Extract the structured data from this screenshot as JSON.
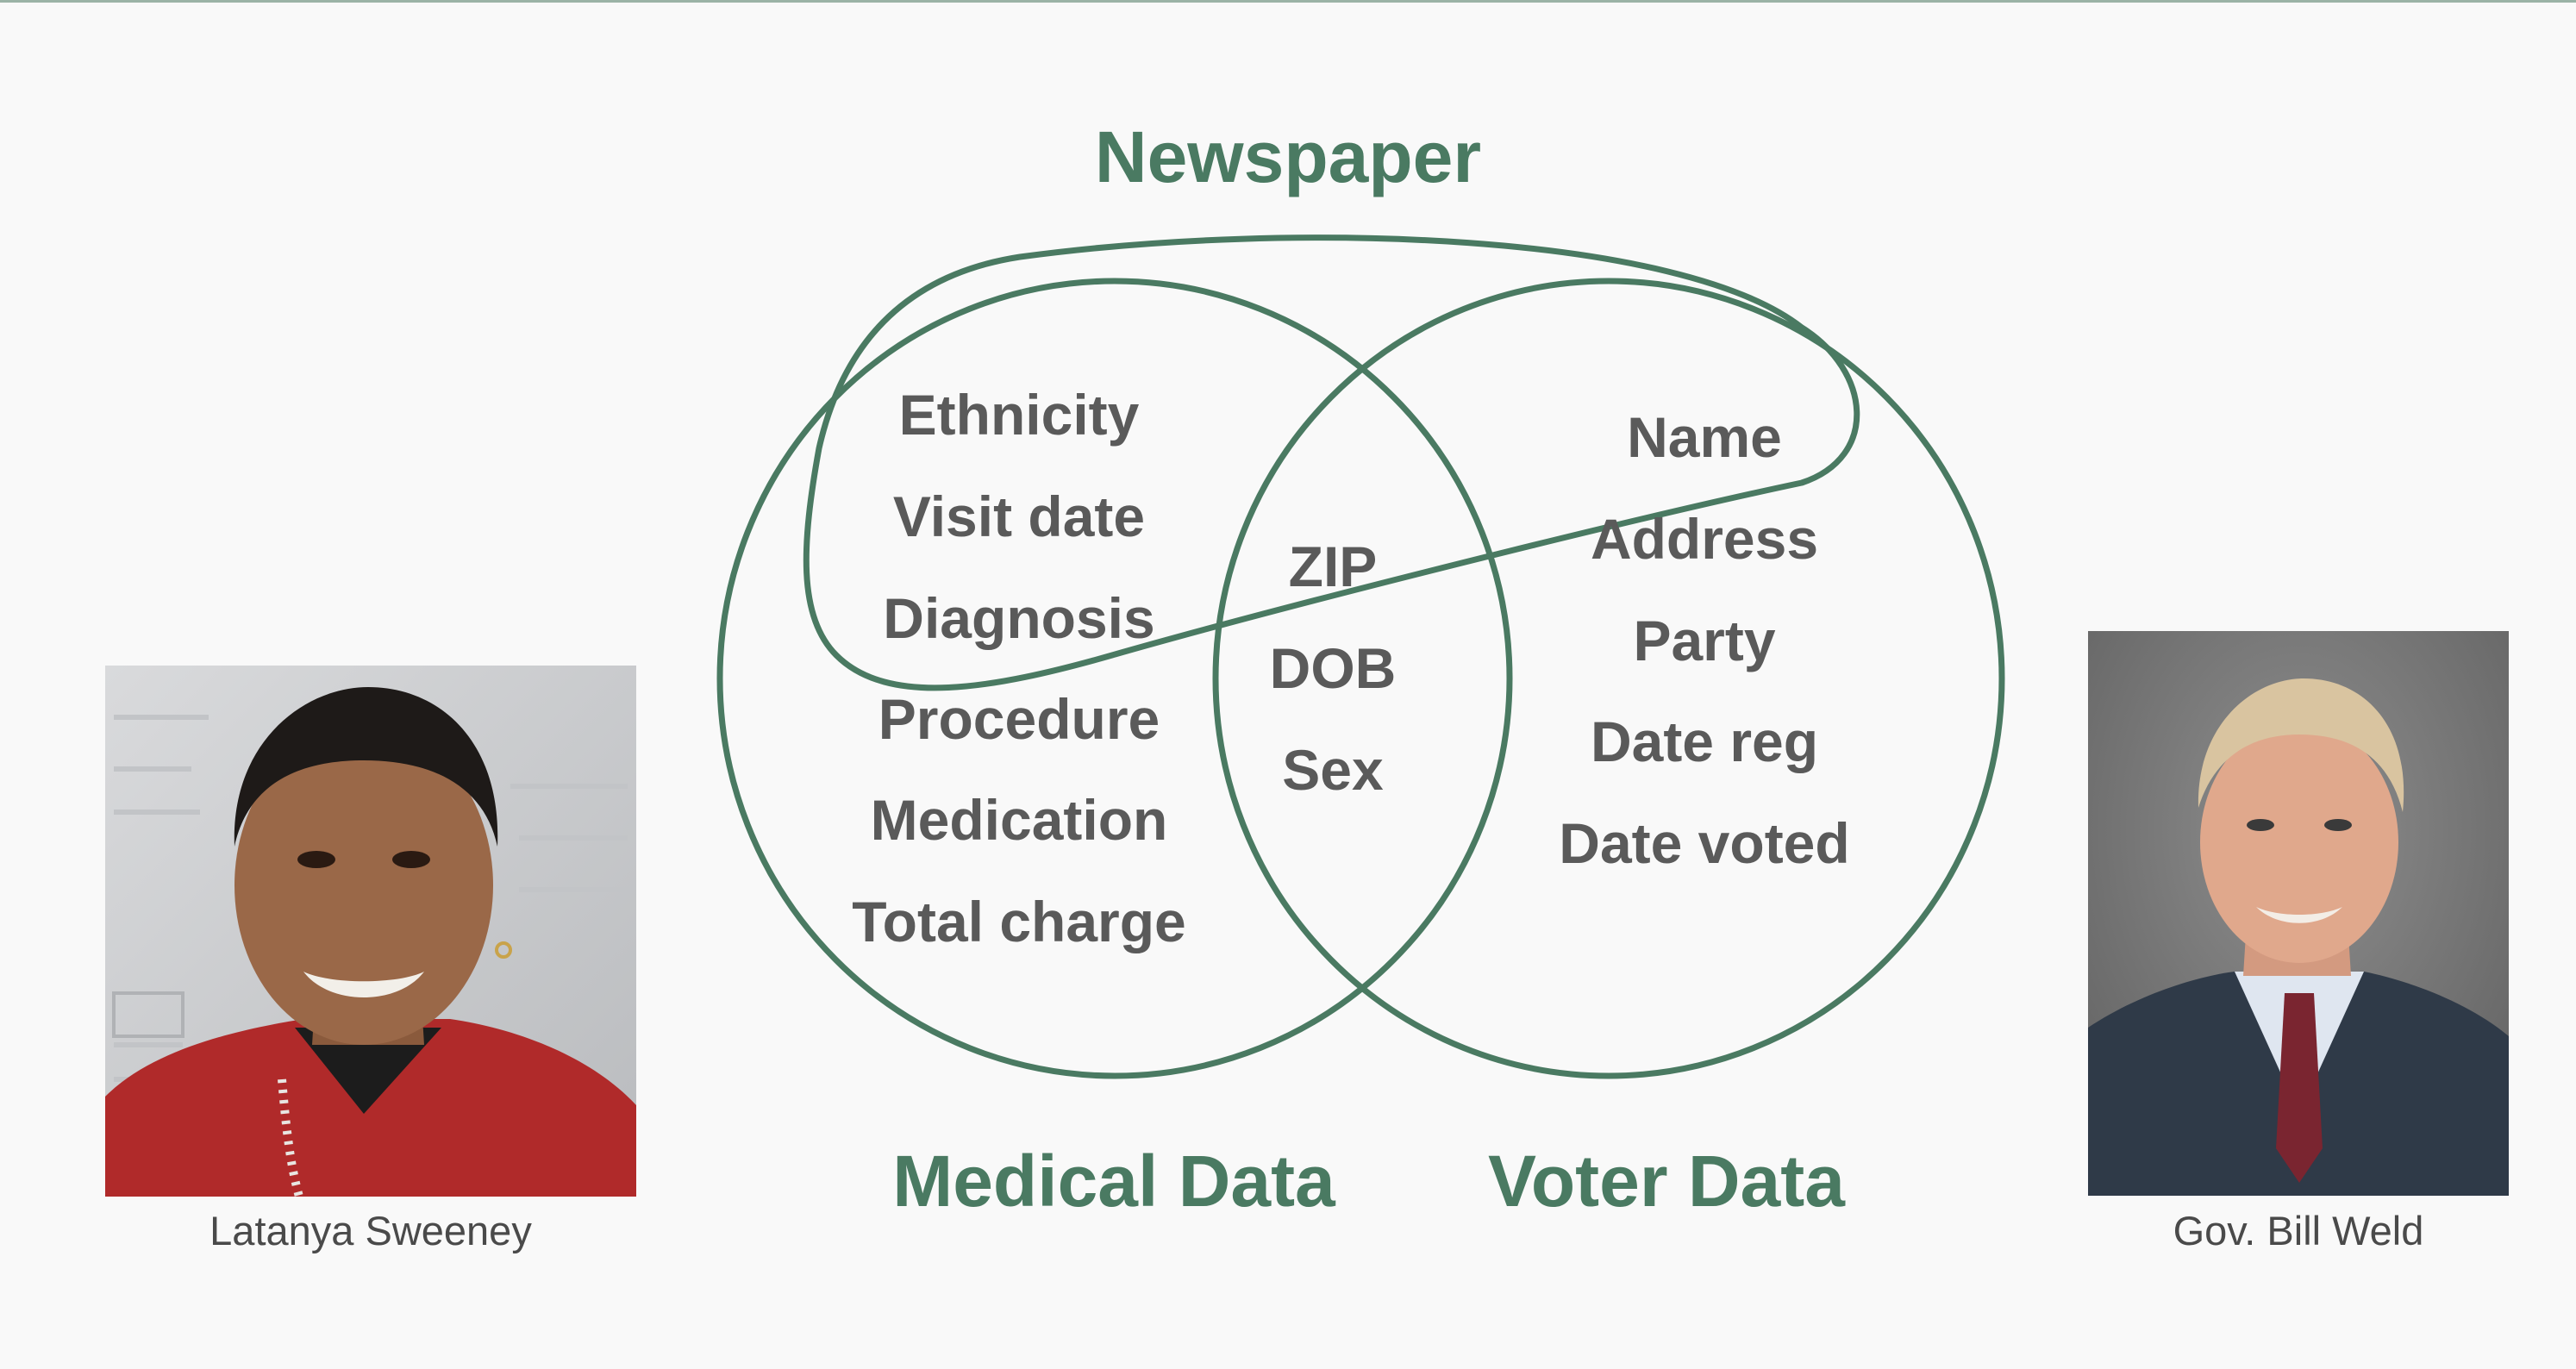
{
  "diagram": {
    "colors": {
      "accent": "#4a7a62",
      "item_text": "#5a5a5a",
      "background": "#f9f9f9"
    },
    "sets": {
      "newspaper": {
        "label": "Newspaper"
      },
      "medical": {
        "label": "Medical Data"
      },
      "voter": {
        "label": "Voter Data"
      }
    },
    "medical_only": [
      "Ethnicity",
      "Visit date",
      "Diagnosis",
      "Procedure",
      "Medication",
      "Total charge"
    ],
    "shared": [
      "ZIP",
      "DOB",
      "Sex"
    ],
    "voter_only": [
      "Name",
      "Address",
      "Party",
      "Date reg",
      "Date voted"
    ]
  },
  "people": {
    "left": {
      "caption": "Latanya Sweeney"
    },
    "right": {
      "caption": "Gov. Bill Weld"
    }
  }
}
